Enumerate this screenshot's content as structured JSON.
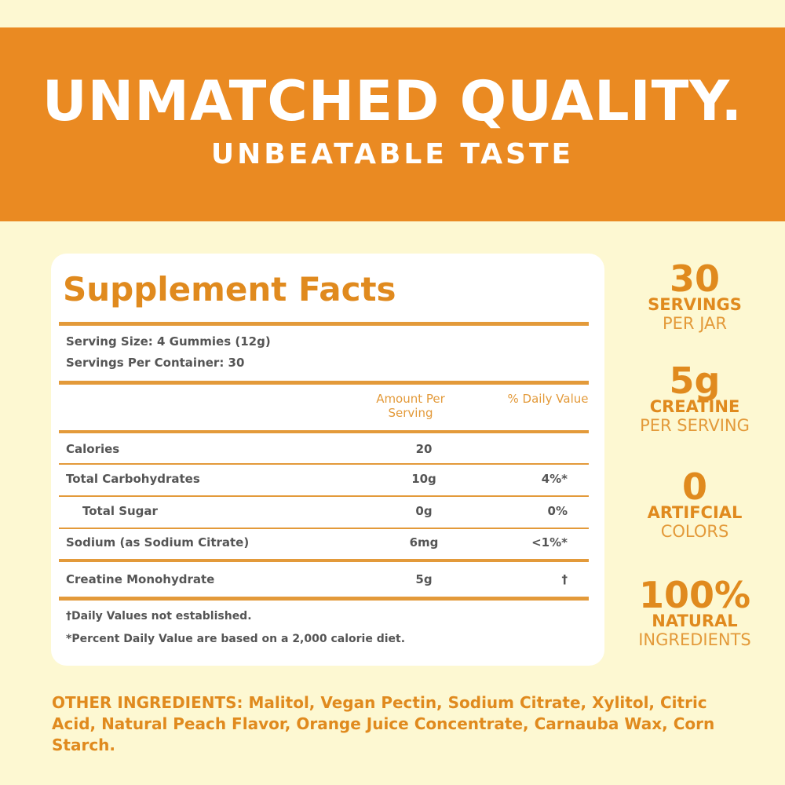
{
  "header": {
    "title": "UNMATCHED QUALITY.",
    "subtitle": "UNBEATABLE TASTE"
  },
  "facts": {
    "title": "Supplement Facts",
    "serving_size": "Serving Size: 4 Gummies (12g)",
    "servings_per_container": "Servings Per Container: 30",
    "columns": [
      "Amount Per Serving",
      "% Daily Value"
    ],
    "rows": [
      {
        "label": "Calories",
        "amount": "20"
      },
      {
        "label": "Total Carbohydrates",
        "amount": "10g",
        "dv": "4%*"
      },
      {
        "label": "Total Sugar",
        "amount": "0g",
        "dv": "0%"
      },
      {
        "label": "Sodium (as Sodium Citrate)",
        "amount": "6mg",
        "dv": "<1%*"
      },
      {
        "label": "Creatine Monohydrate",
        "amount": "5g",
        "dv": "†"
      }
    ],
    "footnotes": [
      "†Daily Values not established.",
      "*Percent Daily Value are based on a 2,000 calorie diet."
    ]
  },
  "stats": [
    {
      "number": "30",
      "label": "SERVINGS",
      "sub": "PER JAR"
    },
    {
      "number": "5g",
      "label": "CREATINE",
      "sub": "PER SERVING"
    },
    {
      "number": "0",
      "label": "ARTIFCIAL",
      "sub": "COLORS"
    },
    {
      "number": "100%",
      "label": "NATURAL",
      "sub": "INGREDIENTS"
    }
  ],
  "other_ingredients": {
    "label": "OTHER INGREDIENTS:",
    "text": "Malitol, Vegan Pectin, Sodium Citrate, Xylitol, Citric Acid, Natural Peach Flavor, Orange Juice Concentrate, Carnauba Wax, Corn Starch."
  }
}
